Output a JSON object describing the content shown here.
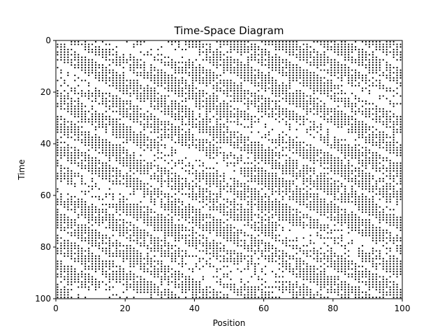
{
  "chart_data": {
    "type": "scatter",
    "title": "Time-Space Diagram",
    "xlabel": "Position",
    "ylabel": "Time",
    "xlim": [
      0,
      100
    ],
    "ylim": [
      0,
      100
    ],
    "y_inverted": true,
    "grid": false,
    "xticks": [
      0,
      20,
      40,
      60,
      80,
      100
    ],
    "yticks": [
      0,
      20,
      40,
      60,
      80,
      100
    ],
    "point_color": "#000000",
    "description_of_points": "occupied cells of a traffic cellular automaton (positions 0-99, times 0-99); dense black regions are jams, diagonal white bands are free-flow waves",
    "point_rule": {
      "lattice_positions": 100,
      "lattice_times": 100,
      "band_slope_positions_per_time": 1.5,
      "band_period_positions": 14,
      "band_width_positions": 3.2,
      "jam_wave_slope": -0.35
    }
  }
}
